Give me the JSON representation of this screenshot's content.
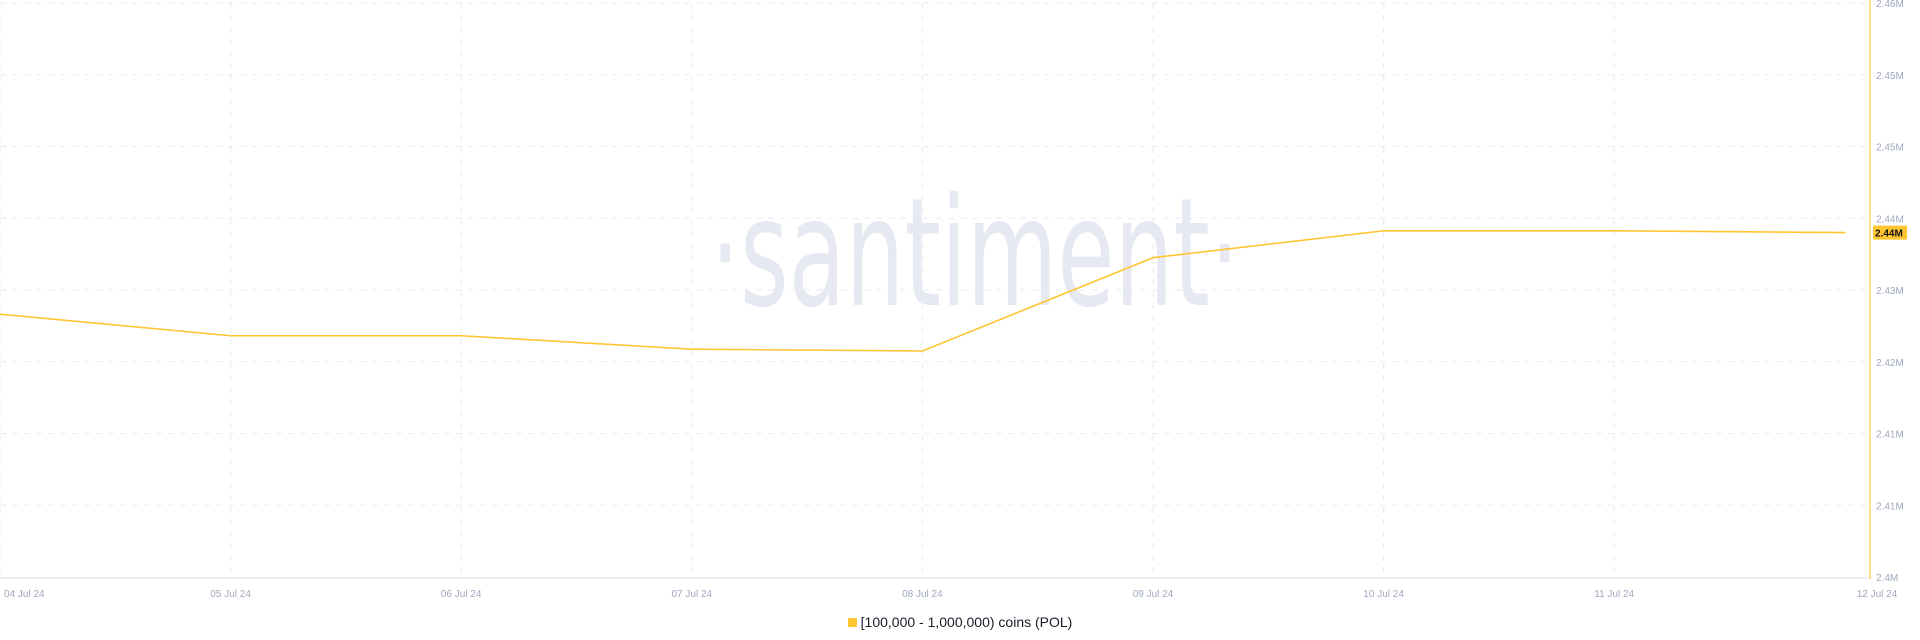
{
  "chart_data": {
    "type": "line",
    "title": "",
    "xlabel": "",
    "ylabel": "",
    "x": [
      "04 Jul 24",
      "05 Jul 24",
      "06 Jul 24",
      "07 Jul 24",
      "08 Jul 24",
      "09 Jul 24",
      "10 Jul 24",
      "11 Jul 24",
      "12 Jul 24"
    ],
    "series": [
      {
        "name": "[100,000  - 1,000,000) coins (POL)",
        "color": "#ffc532",
        "values": [
          2427300,
          2424900,
          2424900,
          2423400,
          2423200,
          2433600,
          2436600,
          2436600,
          2436400
        ]
      }
    ],
    "ylim": [
      2398000,
      2462000
    ],
    "y_ticks": [
      2398000,
      2406000,
      2414000,
      2422000,
      2430000,
      2438000,
      2446000,
      2454000,
      2462000
    ],
    "y_tick_labels": [
      "2.4M",
      "2.41M",
      "2.41M",
      "2.42M",
      "2.43M",
      "2.44M",
      "2.45M",
      "2.45M",
      "2.46M"
    ],
    "x_tick_labels": [
      "04 Jul 24",
      "05 Jul 24",
      "06 Jul 24",
      "07 Jul 24",
      "08 Jul 24",
      "09 Jul 24",
      "10 Jul 24",
      "11 Jul 24",
      "12 Jul 24"
    ],
    "last_value_label": "2.44M",
    "y_axis_position": "right",
    "grid": true,
    "legend_placement": "bottom-center",
    "axis_color": "#ffe08a",
    "grid_color": "#e9ebf2",
    "watermark": "·santiment·"
  }
}
